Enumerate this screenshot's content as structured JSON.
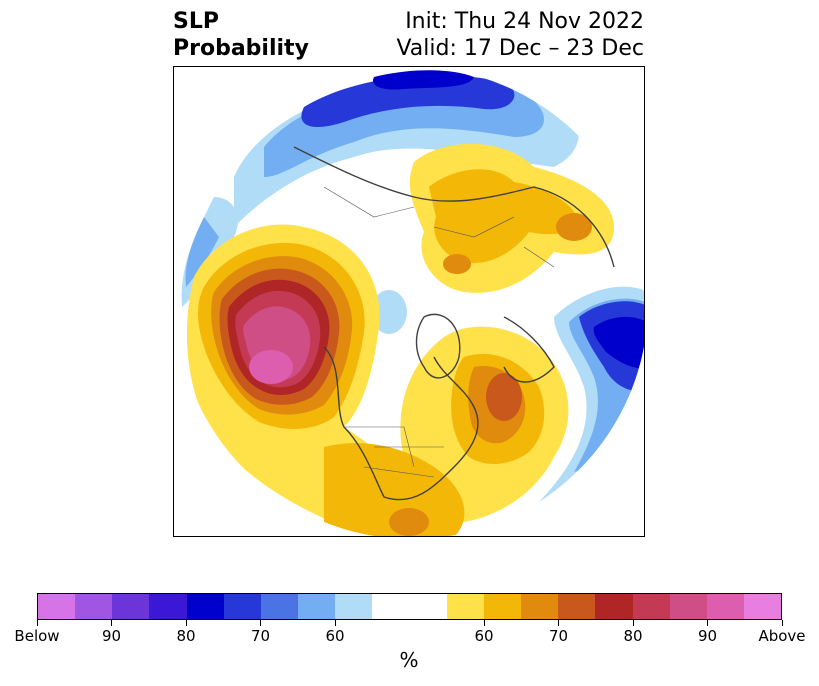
{
  "header": {
    "title_line1": "SLP",
    "title_line2": "Probability",
    "init": "Init: Thu 24 Nov 2022",
    "valid": "Valid: 17 Dec – 23 Dec"
  },
  "colorbar": {
    "colors": [
      "#d673e6",
      "#a155e3",
      "#6b35d9",
      "#3a18d6",
      "#0000cc",
      "#2738d9",
      "#4a73e3",
      "#73aef2",
      "#b0dcf7",
      "#ffffff",
      "#ffffff",
      "#ffe14a",
      "#f3b708",
      "#e08a0e",
      "#c8581b",
      "#b02525",
      "#c43a55",
      "#cf4e86",
      "#dd5eae",
      "#e77ee0"
    ],
    "tick_labels": [
      "Below",
      "90",
      "80",
      "70",
      "60",
      "60",
      "70",
      "80",
      "90",
      "Above"
    ],
    "units_label": "%"
  }
}
